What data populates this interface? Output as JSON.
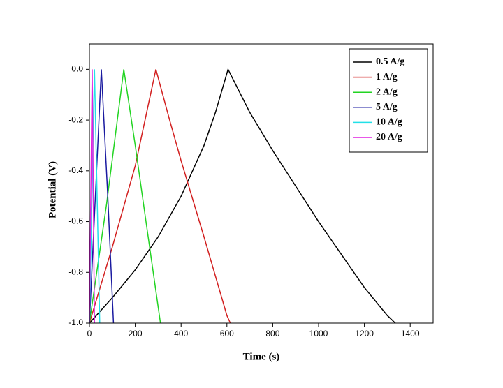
{
  "chart_data": {
    "type": "line",
    "xlabel": "Time (s)",
    "ylabel": "Potential (V)",
    "xlim": [
      0,
      1500
    ],
    "ylim": [
      -1.0,
      0.1
    ],
    "xticks": [
      0,
      200,
      400,
      600,
      800,
      1000,
      1200,
      1400
    ],
    "yticks": [
      {
        "value": -1,
        "label": "-1.0"
      },
      -0.8,
      -0.6,
      -0.4,
      -0.2,
      {
        "value": 0,
        "label": "0.0"
      }
    ],
    "legend": "upper right",
    "series": [
      {
        "name": "0.5 A/g",
        "color": "#000000",
        "x": [
          0,
          50,
          100,
          200,
          300,
          400,
          500,
          550,
          605,
          700,
          800,
          900,
          1000,
          1100,
          1200,
          1300,
          1335
        ],
        "values": [
          -1.0,
          -0.95,
          -0.9,
          -0.79,
          -0.66,
          -0.5,
          -0.3,
          -0.17,
          0,
          -0.17,
          -0.32,
          -0.46,
          -0.6,
          -0.73,
          -0.86,
          -0.97,
          -1.0
        ]
      },
      {
        "name": "1 A/g",
        "color": "#d22020",
        "x": [
          0,
          100,
          200,
          290,
          350,
          400,
          500,
          600,
          615
        ],
        "values": [
          -1.0,
          -0.7,
          -0.38,
          0,
          -0.2,
          -0.36,
          -0.66,
          -0.97,
          -1.0
        ]
      },
      {
        "name": "2 A/g",
        "color": "#22d422",
        "x": [
          0,
          75,
          150,
          200,
          250,
          310
        ],
        "values": [
          -1.0,
          -0.53,
          0,
          -0.3,
          -0.62,
          -1.0
        ]
      },
      {
        "name": "5 A/g",
        "color": "#1a1aa0",
        "x": [
          0,
          52,
          80,
          105
        ],
        "values": [
          -1.0,
          0,
          -0.5,
          -1.0
        ]
      },
      {
        "name": "10 A/g",
        "color": "#22e0e8",
        "x": [
          0,
          22,
          45
        ],
        "values": [
          -1.0,
          0,
          -1.0
        ]
      },
      {
        "name": "20 A/g",
        "color": "#e020e0",
        "x": [
          0,
          12,
          22
        ],
        "values": [
          -1.0,
          0,
          -1.0
        ]
      }
    ]
  }
}
